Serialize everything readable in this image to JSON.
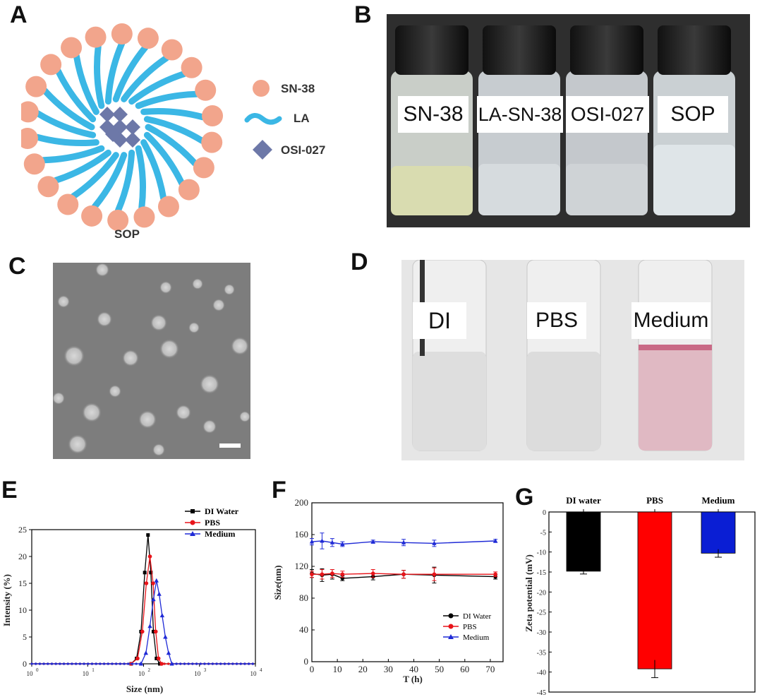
{
  "panels": {
    "a": {
      "letter": "A",
      "caption": "SOP",
      "legend": [
        {
          "label": "SN-38",
          "icon": "sn38-circle-icon",
          "color": "#f2a58c"
        },
        {
          "label": "LA",
          "icon": "la-wave-icon",
          "color": "#3bb7e5"
        },
        {
          "label": "OSI-027",
          "icon": "osi027-diamond-icon",
          "color": "#6d78a8"
        }
      ]
    },
    "b": {
      "letter": "B",
      "vials": [
        "SN-38",
        "LA-SN-38",
        "OSI-027",
        "SOP"
      ]
    },
    "c": {
      "letter": "C"
    },
    "d": {
      "letter": "D",
      "vials": [
        "DI",
        "PBS",
        "Medium"
      ]
    },
    "e": {
      "letter": "E",
      "legend": [
        "DI Water",
        "PBS",
        "Medium"
      ],
      "y_ticks": [
        "0",
        "5",
        "10",
        "15",
        "20",
        "25"
      ],
      "x_ticks": [
        "10",
        "10",
        "10",
        "10",
        "10"
      ],
      "x_exps": [
        "0",
        "1",
        "2",
        "3",
        "4"
      ],
      "xlabel": "Size (nm)",
      "ylabel": "Intensity (%)"
    },
    "f": {
      "letter": "F",
      "legend": [
        "DI Water",
        "PBS",
        "Medium"
      ],
      "y_ticks": [
        "0",
        "40",
        "80",
        "120",
        "160",
        "200"
      ],
      "x_ticks": [
        "0",
        "10",
        "20",
        "30",
        "40",
        "50",
        "60",
        "70"
      ],
      "xlabel": "T (h)",
      "ylabel": "Size(nm)"
    },
    "g": {
      "letter": "G",
      "categories": [
        "DI water",
        "PBS",
        "Medium"
      ],
      "y_ticks": [
        "0",
        "-5",
        "-10",
        "-15",
        "-20",
        "-25",
        "-30",
        "-35",
        "-40",
        "-45"
      ],
      "ylabel": "Zeta potential (mV)"
    }
  },
  "chart_data": [
    {
      "type": "line",
      "panel": "E",
      "xlabel": "Size (nm)",
      "ylabel": "Intensity (%)",
      "x_scale": "log",
      "xlim": [
        1,
        10000
      ],
      "ylim": [
        0,
        25
      ],
      "series": [
        {
          "name": "DI Water",
          "color": "#000000",
          "x": [
            60,
            75,
            90,
            105,
            120,
            135,
            150,
            170,
            195
          ],
          "y": [
            0,
            1,
            6,
            17,
            24,
            17,
            6,
            1,
            0
          ]
        },
        {
          "name": "PBS",
          "color": "#e8141a",
          "x": [
            60,
            78,
            95,
            112,
            130,
            148,
            165,
            185,
            210
          ],
          "y": [
            0,
            1,
            6,
            15,
            20,
            15,
            6,
            1,
            0
          ]
        },
        {
          "name": "Medium",
          "color": "#1f2ad6",
          "x": [
            90,
            110,
            130,
            150,
            170,
            190,
            215,
            245,
            280,
            320
          ],
          "y": [
            0,
            2,
            7,
            12,
            15.5,
            13,
            9,
            5,
            2,
            0
          ]
        }
      ]
    },
    {
      "type": "line",
      "panel": "F",
      "xlabel": "T (h)",
      "ylabel": "Size(nm)",
      "xlim": [
        0,
        75
      ],
      "ylim": [
        0,
        200
      ],
      "series": [
        {
          "name": "DI Water",
          "color": "#000000",
          "x": [
            0,
            4,
            8,
            12,
            24,
            36,
            48,
            72
          ],
          "y": [
            111,
            109,
            110,
            105,
            107,
            110,
            109,
            107
          ],
          "err": [
            5,
            8,
            6,
            3,
            4,
            5,
            10,
            3
          ]
        },
        {
          "name": "PBS",
          "color": "#e8141a",
          "x": [
            0,
            4,
            8,
            12,
            24,
            36,
            48,
            72
          ],
          "y": [
            110,
            110,
            111,
            110,
            111,
            110,
            110,
            110
          ],
          "err": [
            4,
            6,
            5,
            4,
            5,
            5,
            8,
            3
          ]
        },
        {
          "name": "Medium",
          "color": "#1f2ad6",
          "x": [
            0,
            4,
            8,
            12,
            24,
            36,
            48,
            72
          ],
          "y": [
            151,
            152,
            150,
            148,
            151,
            150,
            149,
            152
          ],
          "err": [
            4,
            10,
            5,
            3,
            2,
            4,
            4,
            2
          ]
        }
      ]
    },
    {
      "type": "bar",
      "panel": "G",
      "ylabel": "Zeta potential (mV)",
      "categories": [
        "DI water",
        "PBS",
        "Medium"
      ],
      "values": [
        -14.8,
        -39.2,
        -10.3
      ],
      "errors": [
        0.7,
        2.2,
        1.0
      ],
      "colors": [
        "#000000",
        "#ff0000",
        "#0a1ed4"
      ],
      "ylim": [
        -45,
        0
      ]
    }
  ]
}
